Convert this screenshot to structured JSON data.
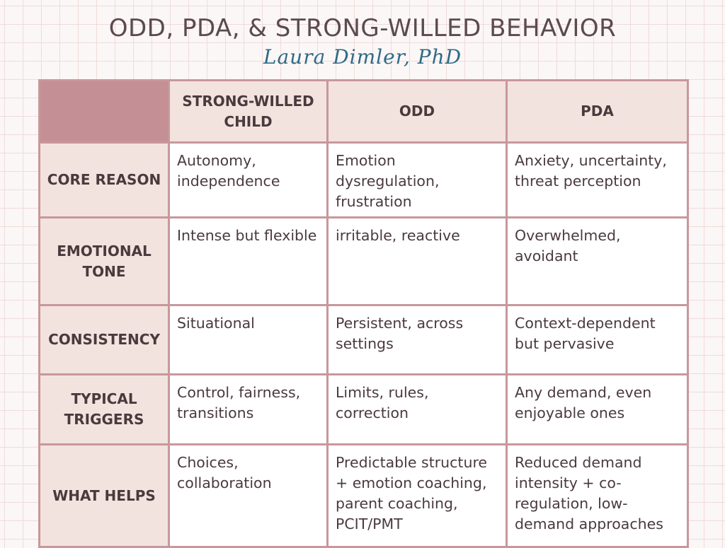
{
  "title": "ODD, PDA, & STRONG-WILLED BEHAVIOR",
  "author": "Laura Dimler, PhD",
  "columns": [
    "STRONG-WILLED CHILD",
    "ODD",
    "PDA"
  ],
  "rows": [
    {
      "label": "CORE REASON",
      "cells": [
        "Autonomy, independence",
        "Emotion dysregulation, frustration",
        "Anxiety, uncertainty, threat perception"
      ]
    },
    {
      "label": "EMOTIONAL TONE",
      "cells": [
        "Intense but flexible",
        "irritable, reactive",
        "Overwhelmed, avoidant"
      ]
    },
    {
      "label": "CONSISTENCY",
      "cells": [
        "Situational",
        "Persistent, across settings",
        "Context-dependent but pervasive"
      ]
    },
    {
      "label": "TYPICAL TRIGGERS",
      "cells": [
        "Control, fairness, transitions",
        "Limits, rules, correction",
        "Any demand, even enjoyable ones"
      ]
    },
    {
      "label": "WHAT HELPS",
      "cells": [
        "Choices, collaboration",
        "Predictable structure + emotion coaching, parent coaching, PCIT/PMT",
        "Reduced demand intensity + co-regulation, low-demand approaches"
      ]
    }
  ],
  "colors": {
    "accent": "#c49095",
    "border": "#c8979c",
    "header_fill": "#f2e3df",
    "author_text": "#2f6a86"
  }
}
